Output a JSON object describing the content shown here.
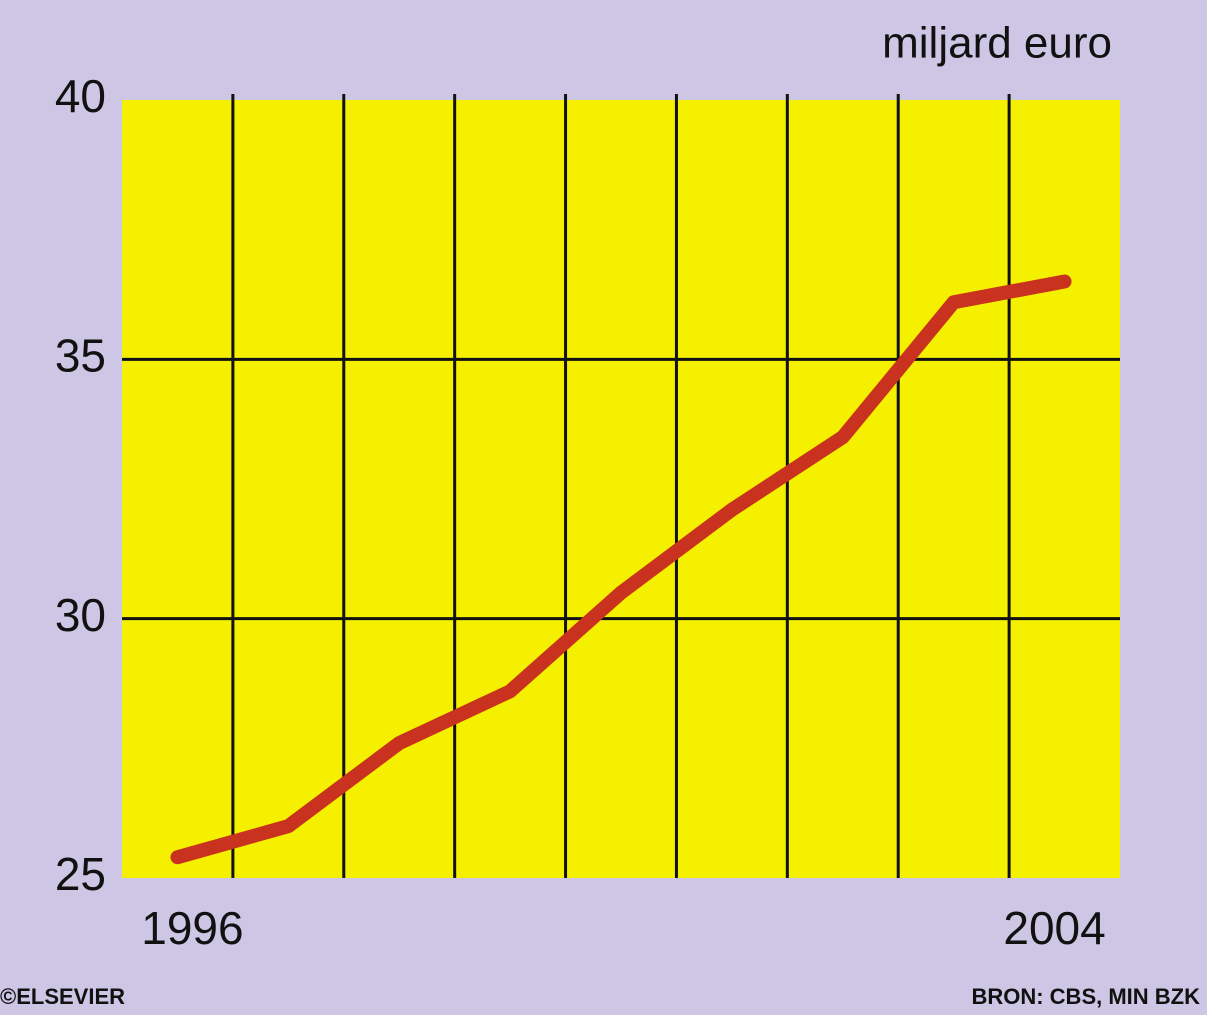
{
  "chart_data": {
    "type": "line",
    "y_axis_label": "miljard euro",
    "categories": [
      "1996",
      null,
      null,
      null,
      null,
      null,
      null,
      null,
      "2004"
    ],
    "series": [
      {
        "color": "#c8321e",
        "values": [
          25.4,
          26.0,
          27.6,
          28.6,
          30.5,
          32.1,
          33.5,
          36.1,
          36.5
        ]
      }
    ],
    "ylim": [
      25,
      40
    ],
    "yticks": [
      25,
      30,
      35,
      40
    ],
    "grid": true,
    "credit": "©ELSEVIER",
    "source": "BRON: CBS, MIN BZK"
  }
}
